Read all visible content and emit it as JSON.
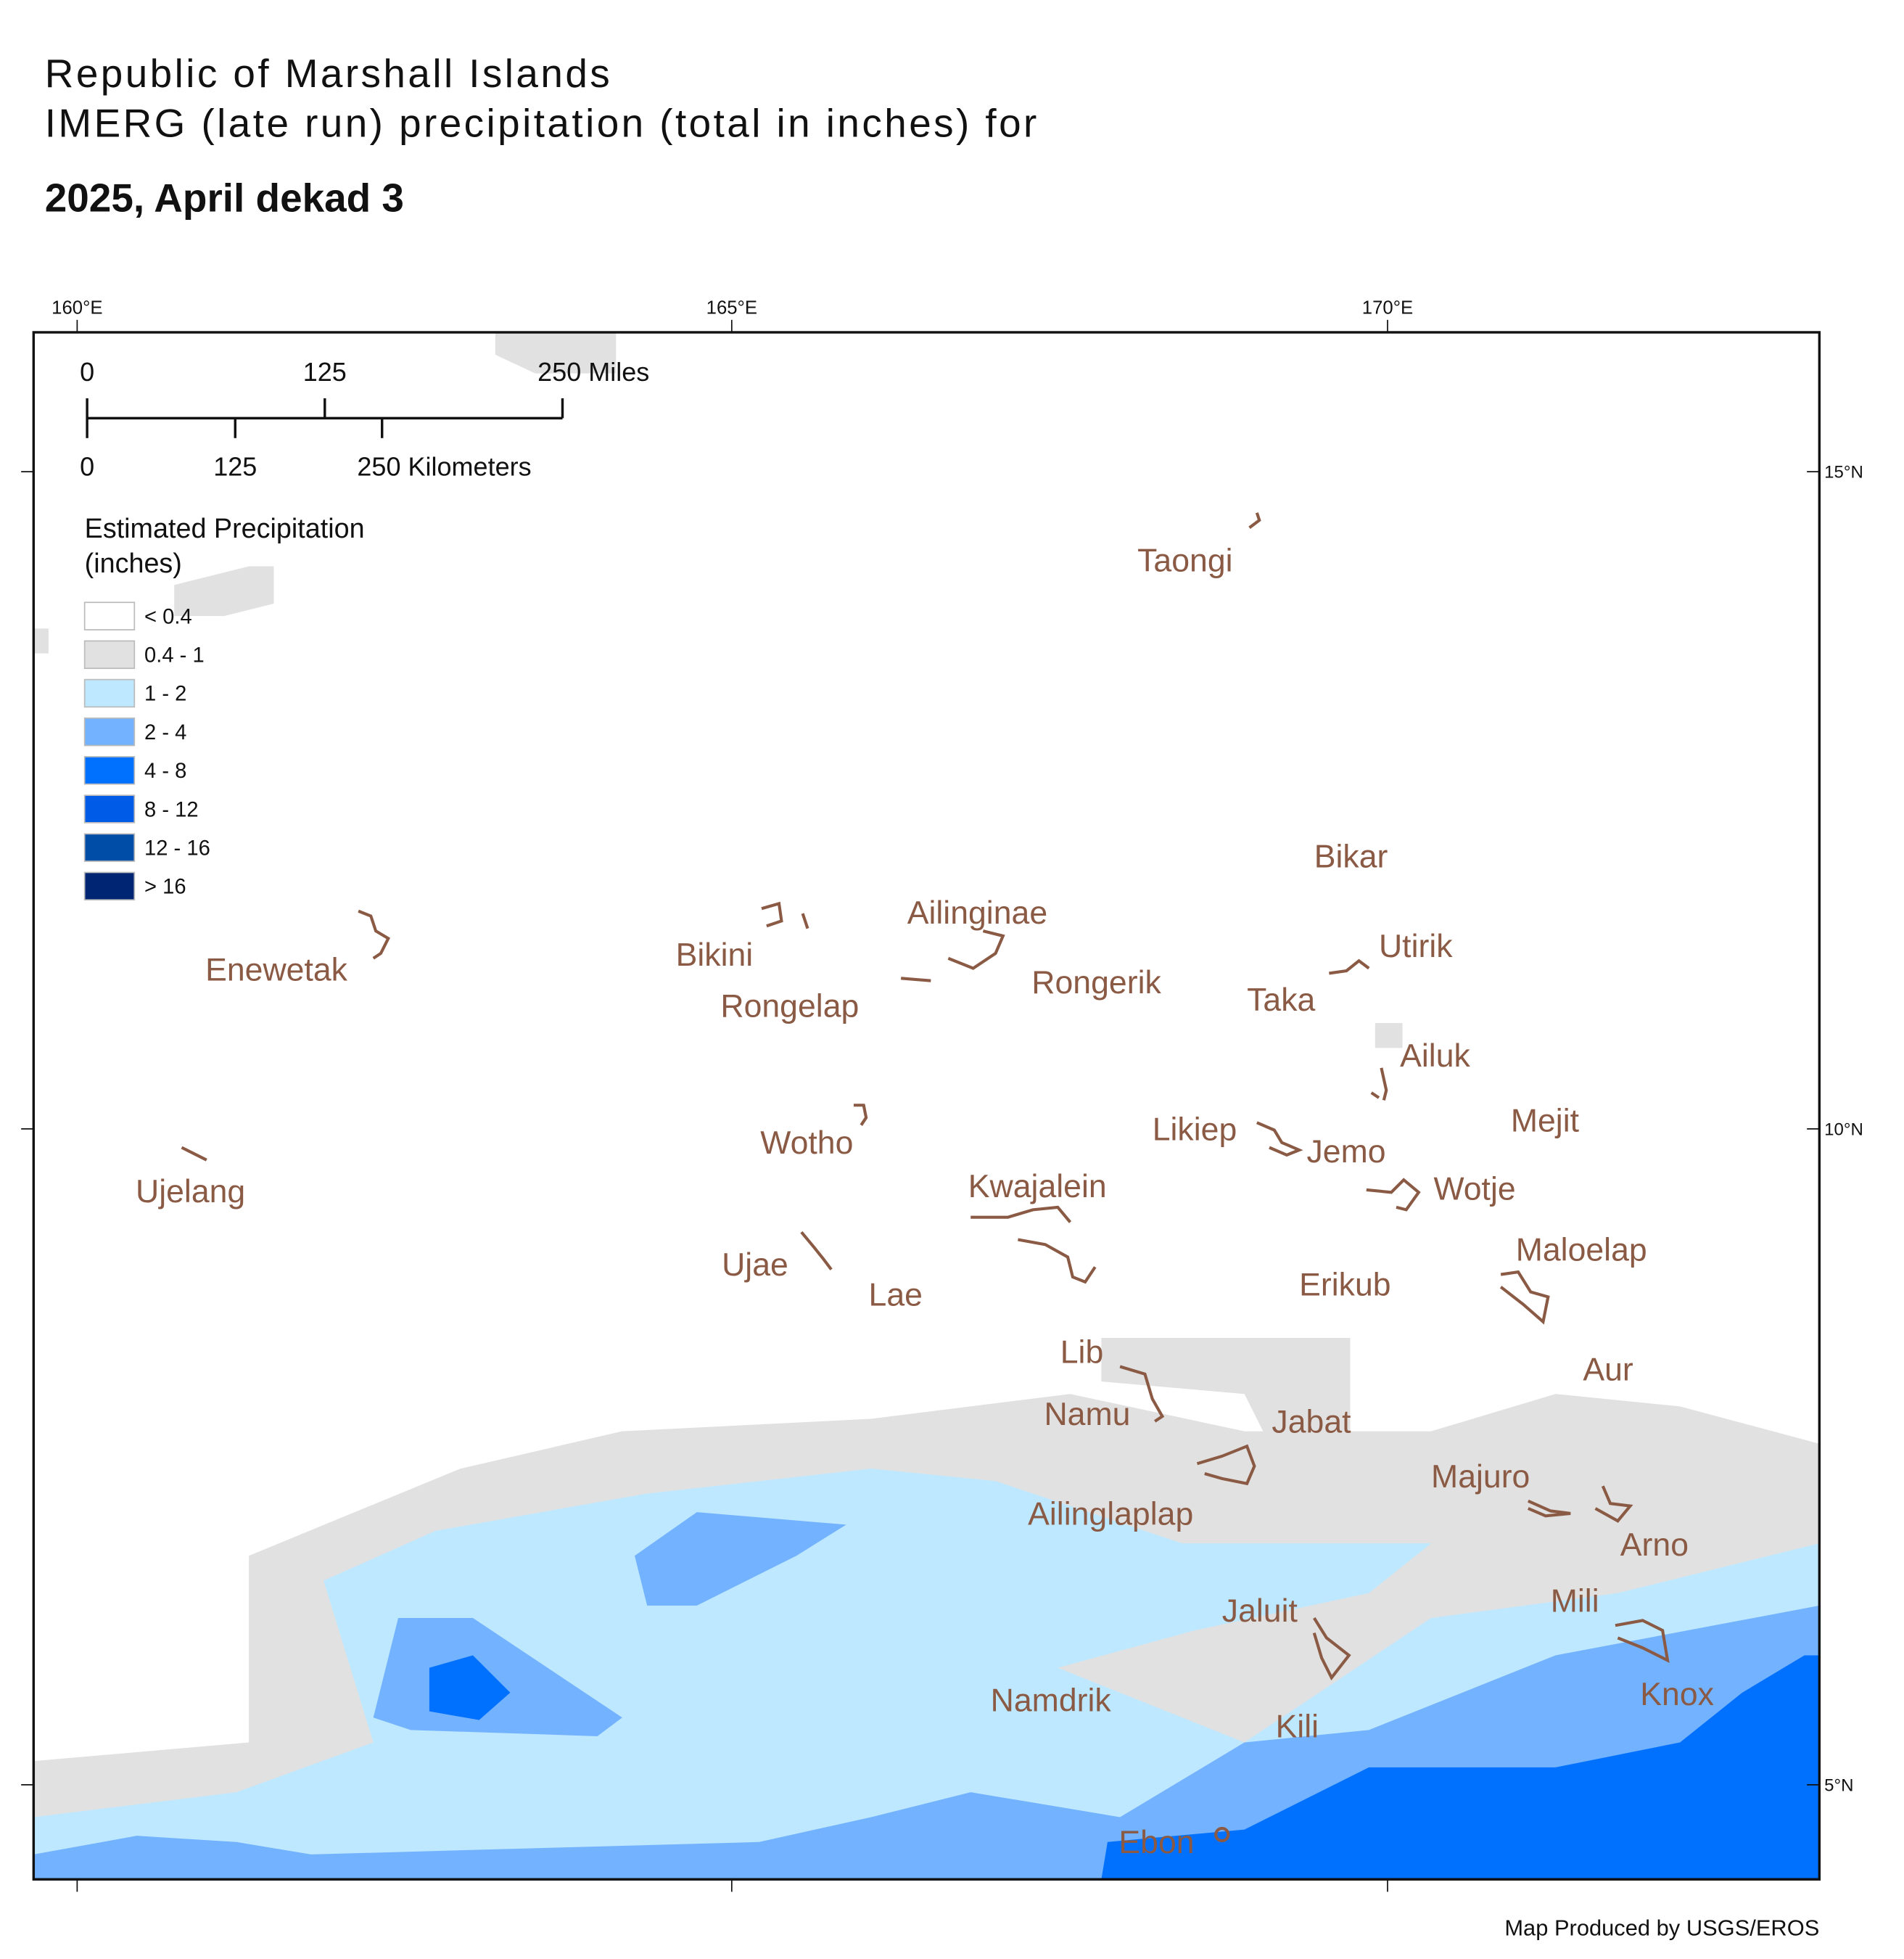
{
  "title": {
    "line1": "Republic of Marshall Islands",
    "line2": "IMERG (late run) precipitation (total in inches) for",
    "subtitle": "2025, April dekad 3"
  },
  "graticule": {
    "longitudes": [
      "160°E",
      "165°E",
      "170°E"
    ],
    "latitudes": [
      "15°N",
      "10°N",
      "5°N"
    ]
  },
  "scale_bar": {
    "miles": [
      "0",
      "125",
      "250 Miles"
    ],
    "kilometers": [
      "0",
      "125",
      "250 Kilometers"
    ]
  },
  "legend": {
    "title_lines": [
      "Estimated Precipitation",
      "(inches)"
    ],
    "items": [
      {
        "label": "< 0.4",
        "color": "#ffffff"
      },
      {
        "label": "0.4 - 1",
        "color": "#e1e1e1"
      },
      {
        "label": "1 - 2",
        "color": "#bee8ff"
      },
      {
        "label": "2 - 4",
        "color": "#73b2ff"
      },
      {
        "label": "4 - 8",
        "color": "#0070ff"
      },
      {
        "label": "8 - 12",
        "color": "#005ce6"
      },
      {
        "label": "12 - 16",
        "color": "#004da8"
      },
      {
        "label": "> 16",
        "color": "#002673"
      }
    ]
  },
  "atolls": [
    "Taongi",
    "Bikar",
    "Enewetak",
    "Bikini",
    "Ailinginae",
    "Rongelap",
    "Rongerik",
    "Utirik",
    "Taka",
    "Ailuk",
    "Mejit",
    "Likiep",
    "Jemo",
    "Wotho",
    "Ujelang",
    "Kwajalein",
    "Wotje",
    "Maloelap",
    "Ujae",
    "Lae",
    "Erikub",
    "Lib",
    "Aur",
    "Namu",
    "Jabat",
    "Majuro",
    "Ailinglaplap",
    "Arno",
    "Mili",
    "Jaluit",
    "Namdrik",
    "Knox",
    "Kili",
    "Ebon"
  ],
  "credit": "Map Produced by USGS/EROS"
}
